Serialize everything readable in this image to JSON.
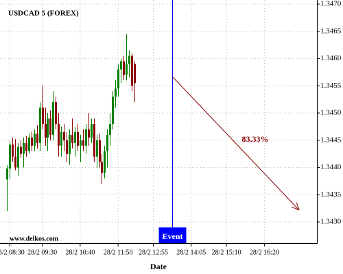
{
  "chart_data": {
    "type": "candlestick",
    "title": "USDCAD 5 (FOREX)",
    "watermark": "www.delkos.com",
    "x_label": "Date",
    "x": [
      "28/2 08:25",
      "28/2 08:30",
      "28/2 08:35",
      "28/2 08:40",
      "28/2 08:45",
      "28/2 08:50",
      "28/2 08:55",
      "28/2 09:00",
      "28/2 09:05",
      "28/2 09:10",
      "28/2 09:15",
      "28/2 09:20",
      "28/2 09:25",
      "28/2 09:30",
      "28/2 09:35",
      "28/2 09:40",
      "28/2 09:45",
      "28/2 09:50",
      "28/2 09:55",
      "28/2 10:00",
      "28/2 10:05",
      "28/2 10:10",
      "28/2 10:15",
      "28/2 10:20",
      "28/2 10:25",
      "28/2 10:30",
      "28/2 10:35",
      "28/2 10:40",
      "28/2 10:45",
      "28/2 10:50",
      "28/2 10:55",
      "28/2 11:00",
      "28/2 11:05",
      "28/2 11:10",
      "28/2 11:15",
      "28/2 11:20",
      "28/2 11:25",
      "28/2 11:30",
      "28/2 11:35",
      "28/2 11:40",
      "28/2 11:45",
      "28/2 11:50",
      "28/2 11:55",
      "28/2 12:00",
      "28/2 12:05",
      "28/2 12:10",
      "28/2 12:15",
      "28/2 12:20"
    ],
    "open": [
      1.34378,
      1.34398,
      1.34442,
      1.3442,
      1.344,
      1.34438,
      1.34425,
      1.34445,
      1.3443,
      1.34455,
      1.3444,
      1.34462,
      1.34445,
      1.3451,
      1.3448,
      1.34455,
      1.3449,
      1.3446,
      1.3452,
      1.3448,
      1.3444,
      1.34465,
      1.3445,
      1.34425,
      1.3446,
      1.34445,
      1.34465,
      1.3444,
      1.3445,
      1.3444,
      1.3447,
      1.34455,
      1.3448,
      1.3442,
      1.3445,
      1.3441,
      1.3439,
      1.3443,
      1.3446,
      1.3448,
      1.3453,
      1.34545,
      1.3458,
      1.34595,
      1.3457,
      1.3459,
      1.34605,
      1.3459
    ],
    "high": [
      1.34404,
      1.34448,
      1.34455,
      1.34452,
      1.34445,
      1.3445,
      1.34455,
      1.34458,
      1.34462,
      1.34466,
      1.3447,
      1.34478,
      1.3452,
      1.3455,
      1.3451,
      1.345,
      1.34505,
      1.3454,
      1.3453,
      1.345,
      1.34475,
      1.3448,
      1.34465,
      1.3447,
      1.3449,
      1.34475,
      1.3448,
      1.3446,
      1.3447,
      1.3448,
      1.345,
      1.3449,
      1.3449,
      1.3446,
      1.34462,
      1.34425,
      1.3444,
      1.3447,
      1.345,
      1.3454,
      1.3456,
      1.3459,
      1.346,
      1.34605,
      1.34645,
      1.34615,
      1.3461,
      1.34595
    ],
    "low": [
      1.3432,
      1.3438,
      1.3441,
      1.34395,
      1.34385,
      1.34418,
      1.344,
      1.3442,
      1.34425,
      1.3443,
      1.3443,
      1.34435,
      1.3443,
      1.3447,
      1.3444,
      1.3443,
      1.3445,
      1.3445,
      1.3447,
      1.3442,
      1.3442,
      1.3443,
      1.3441,
      1.34405,
      1.34435,
      1.3442,
      1.3443,
      1.3441,
      1.3443,
      1.34425,
      1.3444,
      1.34445,
      1.3441,
      1.344,
      1.344,
      1.3437,
      1.3438,
      1.344,
      1.3444,
      1.3447,
      1.3451,
      1.3453,
      1.34555,
      1.3456,
      1.3456,
      1.34565,
      1.3454,
      1.3452
    ],
    "close": [
      1.34398,
      1.34442,
      1.3442,
      1.344,
      1.34438,
      1.34425,
      1.34445,
      1.3443,
      1.34455,
      1.3444,
      1.34462,
      1.34445,
      1.3451,
      1.3448,
      1.34455,
      1.3449,
      1.3446,
      1.3452,
      1.3448,
      1.3444,
      1.34465,
      1.3445,
      1.34425,
      1.3446,
      1.34445,
      1.34465,
      1.3444,
      1.3445,
      1.3444,
      1.3447,
      1.34455,
      1.3448,
      1.3442,
      1.3445,
      1.3441,
      1.3439,
      1.3443,
      1.3446,
      1.3448,
      1.3453,
      1.34545,
      1.3458,
      1.34595,
      1.3457,
      1.3459,
      1.34605,
      1.3455,
      1.34555
    ],
    "up_color": "#008000",
    "down_color": "#8b0000",
    "xlim": [
      "28/2 08:12",
      "28/2 17:57"
    ],
    "xticks": [
      "28/2 08:30",
      "28/2 09:30",
      "28/2 10:40",
      "28/2 11:50",
      "28/2 12:55",
      "28/2 14:05",
      "28/2 15:10",
      "28/2 16:20"
    ],
    "ylim": [
      1.3426,
      1.347
    ],
    "yticks": [
      {
        "value": 1.347,
        "label": "1.3470"
      },
      1.3465,
      {
        "value": 1.346,
        "label": "1.3460"
      },
      1.3455,
      {
        "value": 1.345,
        "label": "1.3450"
      },
      1.3445,
      {
        "value": 1.344,
        "label": "1.3440"
      },
      1.3435,
      {
        "value": 1.343,
        "label": "1.3430"
      }
    ],
    "grid": true,
    "event": {
      "label": "Event",
      "x": "28/2 13:30",
      "color": "#0000ff"
    },
    "forecast": {
      "label": "83.33%",
      "color": "#8b0000",
      "start": {
        "x": "28/2 13:30",
        "y": 1.34567
      },
      "end": {
        "x": "28/2 17:24",
        "y": 1.34322
      }
    }
  }
}
